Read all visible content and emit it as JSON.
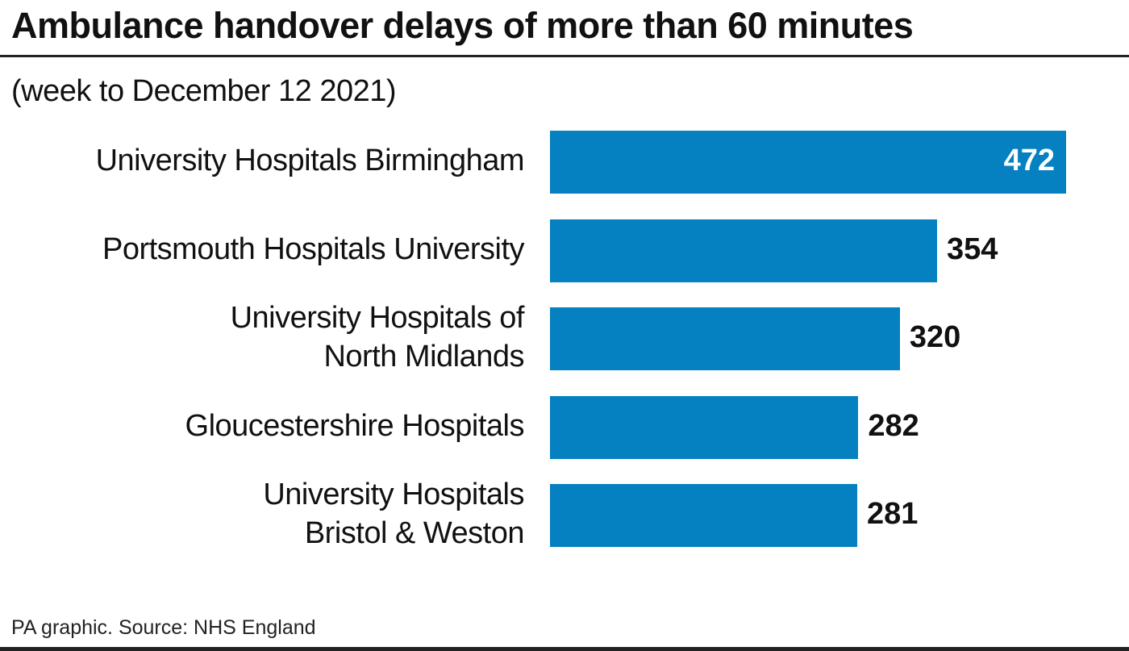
{
  "chart_data": {
    "type": "bar",
    "orientation": "horizontal",
    "title": "Ambulance handover delays of more than 60 minutes",
    "subtitle": "(week to December 12 2021)",
    "categories": [
      "University Hospitals Birmingham",
      "Portsmouth Hospitals University",
      "University Hospitals of\nNorth Midlands",
      "Gloucestershire Hospitals",
      "University Hospitals\nBristol & Weston"
    ],
    "values": [
      472,
      354,
      320,
      282,
      281
    ],
    "xlabel": "",
    "ylabel": "",
    "xlim": [
      0,
      472
    ],
    "grid": false,
    "bar_color": "#0580c0"
  },
  "source": "PA graphic. Source: NHS England"
}
